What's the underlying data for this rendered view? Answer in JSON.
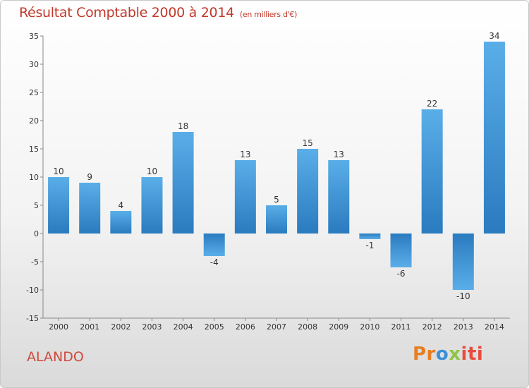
{
  "header": {
    "title": "Résultat Comptable 2000 à 2014",
    "unit": "(en milliers d'€)"
  },
  "commune": "ALANDO",
  "logo": {
    "parts": [
      "Pr",
      "o",
      "x",
      "iti"
    ]
  },
  "colors": {
    "bar_top": "#5aaee8",
    "bar_bottom": "#2a7bbf",
    "title": "#c0392b",
    "axis": "#888888"
  },
  "chart_data": {
    "type": "bar",
    "title": "Résultat Comptable 2000 à 2014",
    "subtitle": "(en milliers d'€)",
    "xlabel": "",
    "ylabel": "",
    "categories": [
      "2000",
      "2001",
      "2002",
      "2003",
      "2004",
      "2005",
      "2006",
      "2007",
      "2008",
      "2009",
      "2010",
      "2011",
      "2012",
      "2013",
      "2014"
    ],
    "values": [
      10,
      9,
      4,
      10,
      18,
      -4,
      13,
      5,
      15,
      13,
      -1,
      -6,
      22,
      -10,
      34
    ],
    "value_labels": [
      "10",
      "9",
      "4",
      "10",
      "18",
      "-4",
      "13",
      "5",
      "15",
      "13",
      "-1",
      "-6",
      "22",
      "-10",
      "34"
    ],
    "ylim": [
      -15,
      35
    ],
    "yticks": [
      35,
      30,
      25,
      20,
      15,
      10,
      5,
      0,
      -5,
      -10,
      -15
    ],
    "ytick_labels": [
      "35",
      "30",
      "25",
      "20",
      "15",
      "10",
      "5",
      "0",
      "-5",
      "-10",
      "-15"
    ],
    "grid": false,
    "legend": "none"
  }
}
